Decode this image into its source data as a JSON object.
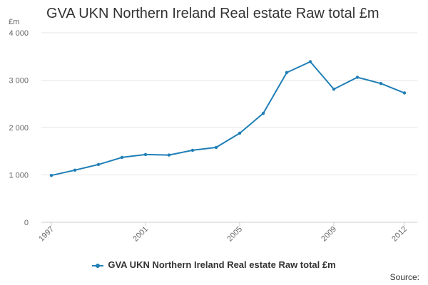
{
  "chart_data": {
    "type": "line",
    "title": "GVA UKN Northern Ireland Real estate Raw total £m",
    "ylabel": "£m",
    "xlabel": "",
    "ylim": [
      0,
      4000
    ],
    "yticks": [
      0,
      1000,
      2000,
      3000,
      4000
    ],
    "ytick_labels": [
      "0",
      "1 000",
      "2 000",
      "3 000",
      "4 000"
    ],
    "xlim": [
      1997,
      2012
    ],
    "xtick_labels": [
      "1997",
      "2001",
      "2005",
      "2009",
      "2012"
    ],
    "grid": true,
    "legend_position": "bottom",
    "x": [
      1997,
      1998,
      1999,
      2000,
      2001,
      2002,
      2003,
      2004,
      2005,
      2006,
      2007,
      2008,
      2009,
      2010,
      2011,
      2012
    ],
    "series": [
      {
        "name": "GVA UKN Northern Ireland Real estate Raw total £m",
        "color": "#1f7fb6",
        "values": [
          990,
          1100,
          1220,
          1370,
          1430,
          1420,
          1520,
          1580,
          1880,
          2300,
          3160,
          3390,
          2810,
          3060,
          2930,
          2730
        ]
      }
    ]
  },
  "legend": {
    "label": "GVA UKN Northern Ireland Real estate Raw total £m"
  },
  "source": "Source:"
}
